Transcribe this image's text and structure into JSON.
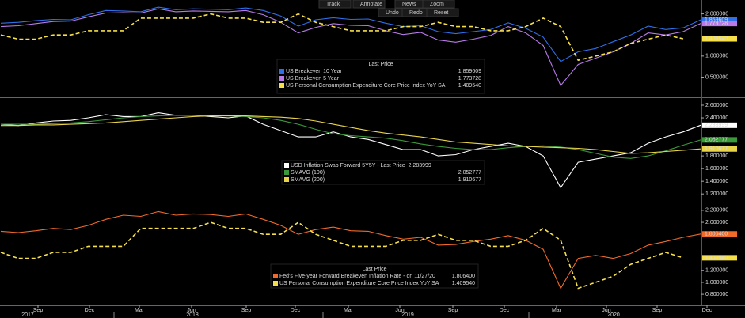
{
  "toolbar": {
    "items": [
      "Track",
      "Annotate",
      "News",
      "Zoom",
      "Undo",
      "Redo",
      "Reset"
    ]
  },
  "x_axis": {
    "ticks": [
      "Sep",
      "Dec",
      "Mar",
      "Jun",
      "Sep",
      "Dec",
      "Mar",
      "Jun",
      "Sep",
      "Dec",
      "Mar",
      "Jun",
      "Sep",
      "Dec"
    ],
    "years": [
      "2017",
      "2018",
      "2019",
      "2020"
    ]
  },
  "chart_data": [
    {
      "type": "line",
      "legend_title": "Last Price",
      "ylim": [
        0.04,
        2.33
      ],
      "yticks": [
        {
          "value": 0.5,
          "label": "0.500000"
        },
        {
          "value": 1.0,
          "label": "1.000000"
        },
        {
          "value": 2.0,
          "label": "2.000000"
        }
      ],
      "series": [
        {
          "name": "US Breakeven 10 Year",
          "color": "#2f6fe8",
          "style": "solid",
          "values": [
            1.78,
            1.8,
            1.84,
            1.87,
            1.86,
            1.98,
            2.08,
            2.07,
            2.05,
            2.16,
            2.1,
            2.12,
            2.11,
            2.1,
            2.14,
            2.08,
            1.95,
            1.71,
            1.86,
            1.91,
            1.87,
            1.88,
            1.78,
            1.7,
            1.72,
            1.58,
            1.53,
            1.58,
            1.63,
            1.79,
            1.66,
            1.45,
            0.87,
            1.1,
            1.18,
            1.34,
            1.5,
            1.71,
            1.63,
            1.67,
            1.859609
          ]
        },
        {
          "name": "US Breakeven 5 Year",
          "color": "#b77ae8",
          "style": "solid",
          "values": [
            1.7,
            1.72,
            1.77,
            1.82,
            1.83,
            1.93,
            2.02,
            2.03,
            2.02,
            2.12,
            2.05,
            2.07,
            2.06,
            2.05,
            2.08,
            1.98,
            1.8,
            1.55,
            1.68,
            1.77,
            1.73,
            1.72,
            1.6,
            1.51,
            1.56,
            1.38,
            1.33,
            1.4,
            1.49,
            1.7,
            1.55,
            1.25,
            0.3,
            0.8,
            0.95,
            1.1,
            1.3,
            1.55,
            1.5,
            1.58,
            1.773728
          ]
        },
        {
          "name": "US Personal Consumption Expenditure Core Price Index YoY SA",
          "color": "#f5e04a",
          "style": "dashed",
          "values": [
            1.5,
            1.4,
            1.4,
            1.5,
            1.5,
            1.6,
            1.6,
            1.6,
            1.9,
            1.9,
            1.9,
            1.9,
            2.0,
            1.9,
            1.9,
            1.8,
            1.8,
            2.0,
            1.8,
            1.7,
            1.6,
            1.6,
            1.6,
            1.7,
            1.7,
            1.8,
            1.7,
            1.7,
            1.6,
            1.6,
            1.7,
            1.9,
            1.7,
            0.9,
            1.0,
            1.1,
            1.3,
            1.4,
            1.5,
            1.40954,
            null
          ],
          "value_labels": [
            null,
            null,
            null,
            null,
            null,
            null,
            null,
            null,
            null,
            null,
            null,
            null,
            null,
            null,
            null,
            null,
            null,
            null,
            null,
            null,
            null,
            null,
            null,
            null,
            null,
            null,
            null,
            null,
            null,
            null,
            null,
            null,
            null,
            null,
            null,
            null,
            null,
            null,
            null,
            "1.409540",
            null
          ]
        }
      ]
    },
    {
      "type": "line",
      "ylim": [
        1.14,
        2.7
      ],
      "yticks": [
        {
          "value": 1.2,
          "label": "1.200000"
        },
        {
          "value": 1.4,
          "label": "1.400000"
        },
        {
          "value": 1.6,
          "label": "1.600000"
        },
        {
          "value": 1.8,
          "label": "1.800000"
        },
        {
          "value": 2.4,
          "label": "2.400000"
        },
        {
          "value": 2.6,
          "label": "2.600000"
        }
      ],
      "series": [
        {
          "name": "USD Inflation Swap Forward 5Y5Y - Last Price",
          "color": "#ffffff",
          "style": "solid",
          "values": [
            2.3,
            2.28,
            2.32,
            2.35,
            2.36,
            2.4,
            2.45,
            2.42,
            2.42,
            2.48,
            2.44,
            2.44,
            2.42,
            2.4,
            2.43,
            2.3,
            2.2,
            2.1,
            2.1,
            2.18,
            2.1,
            2.06,
            1.98,
            1.9,
            1.9,
            1.8,
            1.82,
            1.9,
            1.95,
            2.0,
            1.95,
            1.8,
            1.3,
            1.7,
            1.75,
            1.8,
            1.85,
            2.0,
            2.1,
            2.18,
            2.283999
          ]
        },
        {
          "name": "SMAVG (100)",
          "color": "#3a9a3a",
          "style": "solid",
          "values": [
            2.3,
            2.3,
            2.3,
            2.31,
            2.32,
            2.34,
            2.37,
            2.4,
            2.42,
            2.43,
            2.44,
            2.44,
            2.44,
            2.43,
            2.42,
            2.4,
            2.36,
            2.3,
            2.22,
            2.15,
            2.12,
            2.1,
            2.08,
            2.04,
            1.99,
            1.95,
            1.92,
            1.9,
            1.9,
            1.93,
            1.95,
            1.96,
            1.94,
            1.9,
            1.84,
            1.78,
            1.76,
            1.8,
            1.88,
            1.97,
            2.052777
          ]
        },
        {
          "name": "SMAVG (200)",
          "color": "#e8d44a",
          "style": "solid",
          "values": [
            2.28,
            2.28,
            2.29,
            2.29,
            2.3,
            2.31,
            2.32,
            2.34,
            2.36,
            2.38,
            2.4,
            2.42,
            2.43,
            2.43,
            2.43,
            2.42,
            2.41,
            2.39,
            2.35,
            2.3,
            2.25,
            2.2,
            2.16,
            2.13,
            2.1,
            2.06,
            2.02,
            2.0,
            1.98,
            1.96,
            1.95,
            1.94,
            1.93,
            1.92,
            1.9,
            1.87,
            1.84,
            1.85,
            1.87,
            1.89,
            1.910677
          ]
        }
      ]
    },
    {
      "type": "line",
      "legend_title": "Last Price",
      "ylim": [
        0.63,
        2.37
      ],
      "yticks": [
        {
          "value": 0.8,
          "label": "0.800000"
        },
        {
          "value": 1.0,
          "label": "1.000000"
        },
        {
          "value": 1.2,
          "label": "1.200000"
        },
        {
          "value": 2.0,
          "label": "2.000000"
        },
        {
          "value": 2.2,
          "label": "2.200000"
        }
      ],
      "series": [
        {
          "name": "Fed's Five-year Forward Breakeven Inflation Rate - on 11/27/20",
          "color": "#f06a2a",
          "style": "solid",
          "values": [
            1.85,
            1.83,
            1.86,
            1.9,
            1.88,
            1.95,
            2.05,
            2.12,
            2.1,
            2.18,
            2.12,
            2.14,
            2.13,
            2.1,
            2.14,
            2.05,
            1.95,
            1.8,
            1.88,
            1.92,
            1.86,
            1.85,
            1.78,
            1.72,
            1.75,
            1.62,
            1.63,
            1.68,
            1.72,
            1.78,
            1.7,
            1.55,
            0.9,
            1.4,
            1.45,
            1.4,
            1.48,
            1.62,
            1.68,
            1.75,
            1.8064
          ],
          "value_labels": [
            null,
            null,
            null,
            null,
            null,
            null,
            null,
            null,
            null,
            null,
            null,
            null,
            null,
            null,
            null,
            null,
            null,
            null,
            null,
            null,
            null,
            null,
            null,
            null,
            null,
            null,
            null,
            null,
            null,
            null,
            null,
            null,
            null,
            null,
            null,
            null,
            null,
            null,
            null,
            null,
            "1.806400"
          ]
        },
        {
          "name": "US Personal Consumption Expenditure Core Price Index YoY SA",
          "color": "#f5e04a",
          "style": "dashed",
          "values": [
            1.5,
            1.4,
            1.4,
            1.5,
            1.5,
            1.6,
            1.6,
            1.6,
            1.9,
            1.9,
            1.9,
            1.9,
            2.0,
            1.9,
            1.9,
            1.8,
            1.8,
            2.0,
            1.8,
            1.7,
            1.6,
            1.6,
            1.6,
            1.7,
            1.7,
            1.8,
            1.7,
            1.7,
            1.6,
            1.6,
            1.7,
            1.9,
            1.7,
            0.9,
            1.0,
            1.1,
            1.3,
            1.4,
            1.5,
            1.40954,
            null
          ],
          "value_labels": [
            null,
            null,
            null,
            null,
            null,
            null,
            null,
            null,
            null,
            null,
            null,
            null,
            null,
            null,
            null,
            null,
            null,
            null,
            null,
            null,
            null,
            null,
            null,
            null,
            null,
            null,
            null,
            null,
            null,
            null,
            null,
            null,
            null,
            null,
            null,
            null,
            null,
            null,
            null,
            "1.409540",
            null
          ]
        }
      ]
    }
  ]
}
